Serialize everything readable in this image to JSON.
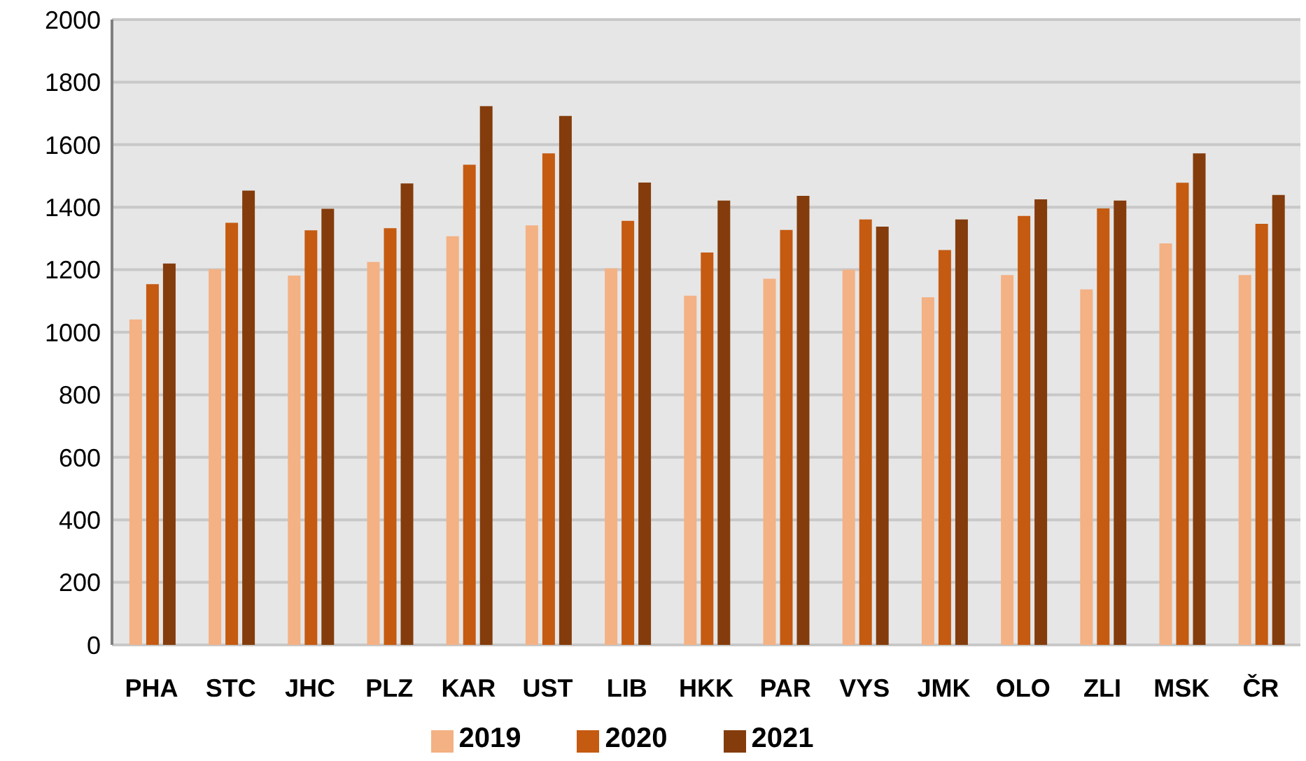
{
  "chart_data": {
    "type": "bar",
    "categories": [
      "PHA",
      "STC",
      "JHC",
      "PLZ",
      "KAR",
      "UST",
      "LIB",
      "HKK",
      "PAR",
      "VYS",
      "JMK",
      "OLO",
      "ZLI",
      "MSK",
      "ČR"
    ],
    "series": [
      {
        "name": "2019",
        "color": "#f4b183",
        "values": [
          1041,
          1202,
          1181,
          1225,
          1307,
          1342,
          1204,
          1117,
          1171,
          1200,
          1112,
          1183,
          1137,
          1284,
          1183
        ]
      },
      {
        "name": "2020",
        "color": "#c55a11",
        "values": [
          1154,
          1350,
          1326,
          1333,
          1536,
          1572,
          1356,
          1255,
          1327,
          1361,
          1263,
          1372,
          1396,
          1478,
          1347
        ]
      },
      {
        "name": "2021",
        "color": "#843c0c",
        "values": [
          1220,
          1453,
          1395,
          1476,
          1723,
          1692,
          1479,
          1421,
          1436,
          1338,
          1361,
          1425,
          1421,
          1572,
          1439
        ]
      }
    ],
    "ylim": [
      0,
      2000
    ],
    "yticks": [
      0,
      200,
      400,
      600,
      800,
      1000,
      1200,
      1400,
      1600,
      1800,
      2000
    ],
    "grid": "y",
    "legend": "bottom"
  }
}
